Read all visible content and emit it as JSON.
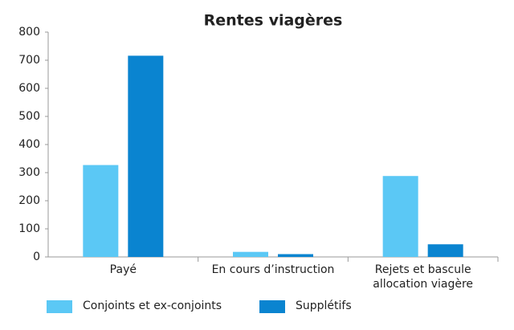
{
  "chart_data": {
    "type": "bar",
    "title": "Rentes viagères",
    "categories": [
      "Payé",
      "En cours d’instruction",
      "Rejets et bascule allocation viagère"
    ],
    "series": [
      {
        "name": "Conjoints et ex-conjoints",
        "color": "#5bc8f5",
        "values": [
          327,
          18,
          288
        ]
      },
      {
        "name": "Supplétifs",
        "color": "#0a84d0",
        "values": [
          716,
          10,
          45
        ]
      }
    ],
    "ylim": [
      0,
      800
    ],
    "yticks": [
      0,
      100,
      200,
      300,
      400,
      500,
      600,
      700,
      800
    ],
    "grid": false
  }
}
